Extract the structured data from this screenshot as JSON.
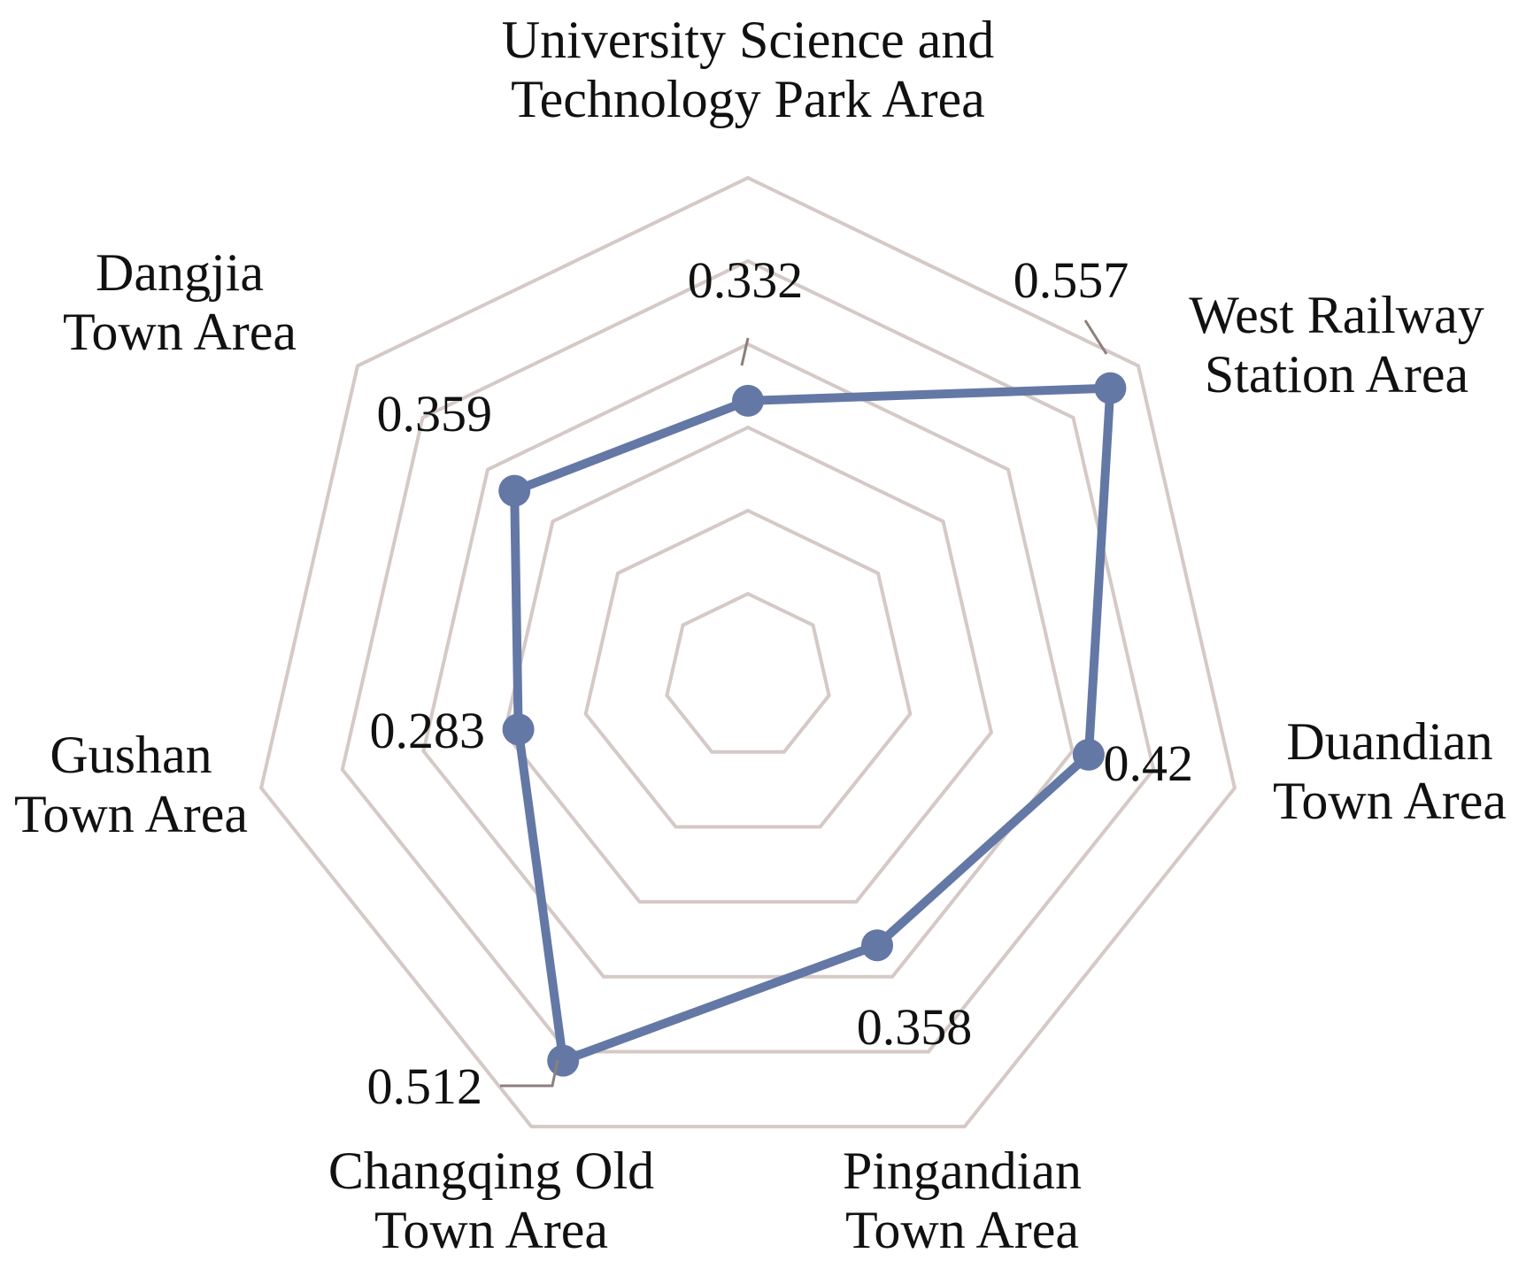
{
  "chart_data": {
    "type": "radar",
    "title": "",
    "categories": [
      "University Science and Technology Park Area",
      "West Railway Station Area",
      "Duandian Town Area",
      "Pingandian Town Area",
      "Changqing Old Town Area",
      "Gushan Town Area",
      "Dangjia Town Area"
    ],
    "category_label_lines": [
      [
        "University Science and",
        "Technology Park Area"
      ],
      [
        "West Railway",
        "Station Area"
      ],
      [
        "Duandian",
        "Town Area"
      ],
      [
        "Pingandian",
        "Town Area"
      ],
      [
        "Changqing Old",
        "Town Area"
      ],
      [
        "Gushan",
        "Town Area"
      ],
      [
        "Dangjia",
        "Town Area"
      ]
    ],
    "series": [
      {
        "values": [
          0.332,
          0.557,
          0.42,
          0.358,
          0.512,
          0.283,
          0.359
        ],
        "value_labels": [
          "0.332",
          "0.557",
          "0.42",
          "0.358",
          "0.512",
          "0.283",
          "0.359"
        ]
      }
    ],
    "rlim": [
      0,
      0.6
    ],
    "ring_count": 6,
    "grid": true,
    "legend": "none",
    "colors": {
      "series": "#6478A6",
      "grid": "#D5C9C6",
      "leader": "#8C7F7C"
    }
  }
}
